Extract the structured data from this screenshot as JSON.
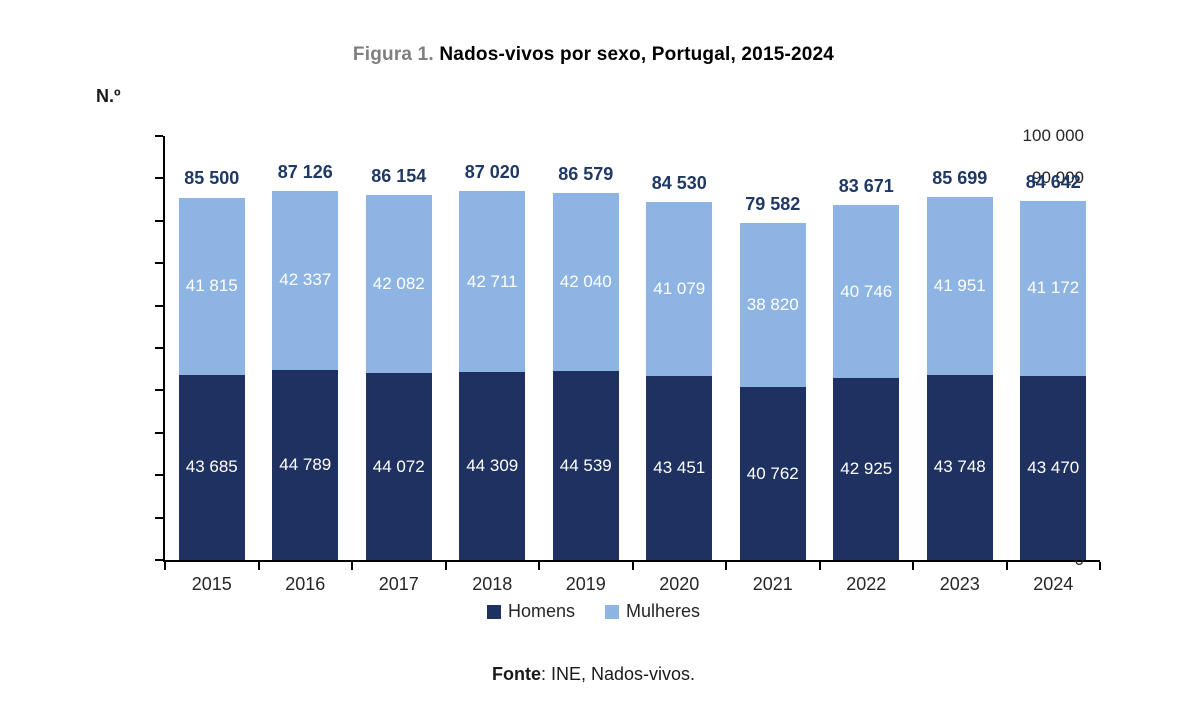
{
  "title": {
    "prefix": "Figura 1.",
    "main": "Nados-vivos por sexo, Portugal, 2015-2024"
  },
  "footer": {
    "label": "Fonte",
    "rest": ": INE, Nados-vivos."
  },
  "colors": {
    "homens": "#1F3160",
    "mulheres": "#8EB4E3",
    "total_label_text": "#1F3864",
    "axis_text": "#262626",
    "title_prefix": "#7F7F7F"
  },
  "chart_data": {
    "type": "bar",
    "stacked": true,
    "title": "Figura 1. Nados-vivos por sexo, Portugal, 2015-2024",
    "ylabel": "N.º",
    "xlabel": "",
    "ylim": [
      0,
      100000
    ],
    "ytick_step": 10000,
    "grid": false,
    "legend_position": "bottom",
    "categories": [
      "2015",
      "2016",
      "2017",
      "2018",
      "2019",
      "2020",
      "2021",
      "2022",
      "2023",
      "2024"
    ],
    "series": [
      {
        "name": "Homens",
        "color": "#1F3160",
        "values": [
          43685,
          44789,
          44072,
          44309,
          44539,
          43451,
          40762,
          42925,
          43748,
          43470
        ]
      },
      {
        "name": "Mulheres",
        "color": "#8EB4E3",
        "values": [
          41815,
          42337,
          42082,
          42711,
          42040,
          41079,
          38820,
          40746,
          41951,
          41172
        ]
      }
    ],
    "totals": [
      85500,
      87126,
      86154,
      87020,
      86579,
      84530,
      79582,
      83671,
      85699,
      84642
    ]
  }
}
